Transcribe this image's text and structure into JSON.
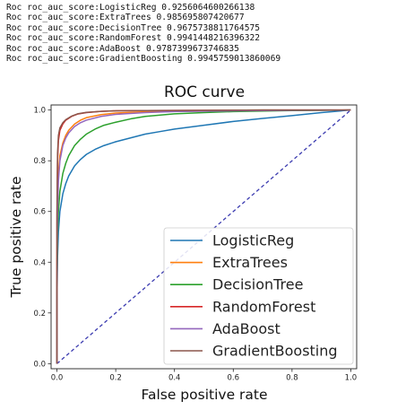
{
  "output": {
    "prefix": "Roc roc_auc_score:",
    "scores": [
      {
        "model": "LogisticReg",
        "value": "0.9256064600266138"
      },
      {
        "model": "ExtraTrees",
        "value": "0.985695807420677"
      },
      {
        "model": "DecisionTree",
        "value": "0.9675738811764575"
      },
      {
        "model": "RandomForest",
        "value": "0.9941448216396322"
      },
      {
        "model": "AdaBoost",
        "value": "0.9787399673746835"
      },
      {
        "model": "GradientBoosting",
        "value": "0.9945759013860069"
      }
    ]
  },
  "chart_data": {
    "type": "line",
    "title": "ROC curve",
    "xlabel": "False positive rate",
    "ylabel": "True positive rate",
    "xlim": [
      -0.02,
      1.02
    ],
    "ylim": [
      -0.02,
      1.02
    ],
    "xticks": [
      "0.0",
      "0.2",
      "0.4",
      "0.6",
      "0.8",
      "1.0"
    ],
    "yticks": [
      "0.0",
      "0.2",
      "0.4",
      "0.6",
      "0.8",
      "1.0"
    ],
    "grid": false,
    "legend_position": "lower-right",
    "diagonal": {
      "x": [
        0,
        1
      ],
      "y": [
        0,
        1
      ],
      "color": "#3b3bb0",
      "style": "dashed"
    },
    "series": [
      {
        "name": "LogisticReg",
        "color": "#1f77b4",
        "x": [
          0,
          0,
          0.002,
          0.005,
          0.01,
          0.02,
          0.03,
          0.04,
          0.06,
          0.08,
          0.1,
          0.13,
          0.16,
          0.2,
          0.25,
          0.3,
          0.35,
          0.4,
          0.5,
          0.6,
          0.7,
          0.8,
          0.9,
          1.0
        ],
        "y": [
          0,
          0.25,
          0.42,
          0.52,
          0.6,
          0.67,
          0.71,
          0.74,
          0.78,
          0.805,
          0.825,
          0.845,
          0.86,
          0.875,
          0.89,
          0.905,
          0.915,
          0.925,
          0.94,
          0.955,
          0.967,
          0.978,
          0.99,
          1.0
        ]
      },
      {
        "name": "ExtraTrees",
        "color": "#ff7f0e",
        "x": [
          0,
          0,
          0.002,
          0.005,
          0.01,
          0.02,
          0.03,
          0.04,
          0.06,
          0.08,
          0.1,
          0.15,
          0.2,
          0.3,
          0.4,
          0.6,
          0.8,
          1.0
        ],
        "y": [
          0,
          0.4,
          0.65,
          0.75,
          0.82,
          0.87,
          0.9,
          0.92,
          0.945,
          0.96,
          0.97,
          0.982,
          0.988,
          0.993,
          0.995,
          0.997,
          0.999,
          1.0
        ]
      },
      {
        "name": "DecisionTree",
        "color": "#2ca02c",
        "x": [
          0,
          0,
          0.002,
          0.005,
          0.01,
          0.02,
          0.03,
          0.04,
          0.06,
          0.08,
          0.1,
          0.13,
          0.16,
          0.2,
          0.25,
          0.3,
          0.4,
          0.5,
          0.6,
          0.8,
          1.0
        ],
        "y": [
          0,
          0.3,
          0.5,
          0.6,
          0.68,
          0.75,
          0.79,
          0.82,
          0.86,
          0.885,
          0.905,
          0.925,
          0.94,
          0.952,
          0.965,
          0.975,
          0.985,
          0.99,
          0.994,
          0.998,
          1.0
        ]
      },
      {
        "name": "RandomForest",
        "color": "#d62728",
        "x": [
          0,
          0,
          0.002,
          0.005,
          0.01,
          0.02,
          0.03,
          0.05,
          0.07,
          0.1,
          0.15,
          0.2,
          0.3,
          0.5,
          0.7,
          1.0
        ],
        "y": [
          0,
          0.55,
          0.8,
          0.88,
          0.92,
          0.945,
          0.96,
          0.975,
          0.984,
          0.99,
          0.995,
          0.997,
          0.998,
          0.999,
          1.0,
          1.0
        ]
      },
      {
        "name": "AdaBoost",
        "color": "#9467bd",
        "x": [
          0,
          0,
          0.002,
          0.005,
          0.01,
          0.02,
          0.03,
          0.04,
          0.06,
          0.08,
          0.1,
          0.15,
          0.2,
          0.3,
          0.4,
          0.6,
          0.8,
          1.0
        ],
        "y": [
          0,
          0.35,
          0.6,
          0.72,
          0.8,
          0.86,
          0.89,
          0.91,
          0.935,
          0.95,
          0.96,
          0.975,
          0.983,
          0.99,
          0.994,
          0.997,
          0.999,
          1.0
        ]
      },
      {
        "name": "GradientBoosting",
        "color": "#8c564b",
        "x": [
          0,
          0,
          0.002,
          0.005,
          0.01,
          0.02,
          0.03,
          0.05,
          0.07,
          0.1,
          0.15,
          0.2,
          0.3,
          0.5,
          0.7,
          1.0
        ],
        "y": [
          0,
          0.6,
          0.83,
          0.9,
          0.93,
          0.95,
          0.962,
          0.976,
          0.985,
          0.991,
          0.995,
          0.997,
          0.998,
          0.999,
          1.0,
          1.0
        ]
      }
    ]
  }
}
